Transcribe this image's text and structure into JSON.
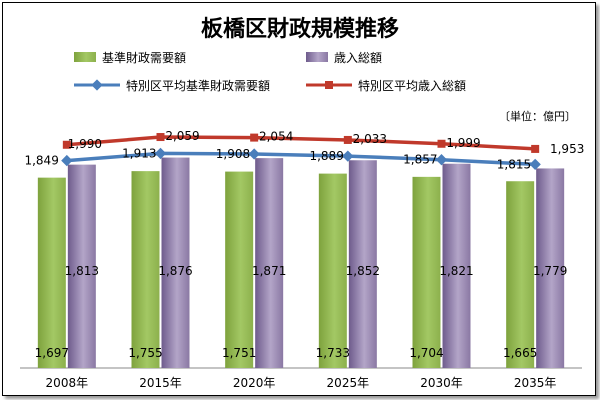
{
  "chart_data": {
    "type": "bar",
    "title": "板橋区財政規模推移",
    "unit_note": "〔単位：億円〕",
    "categories": [
      "2008年",
      "2015年",
      "2020年",
      "2025年",
      "2030年",
      "2035年"
    ],
    "series": [
      {
        "name": "基準財政需要額",
        "type": "bar",
        "color": "#92b84f",
        "values": [
          1697,
          1755,
          1751,
          1733,
          1704,
          1665
        ]
      },
      {
        "name": "歳入総額",
        "type": "bar",
        "color": "#8d7ca6",
        "values": [
          1813,
          1876,
          1871,
          1852,
          1821,
          1779
        ]
      },
      {
        "name": "特別区平均基準財政需要額",
        "type": "line",
        "color": "#4a7ebb",
        "values": [
          1849,
          1913,
          1908,
          1889,
          1857,
          1815
        ]
      },
      {
        "name": "特別区平均歳入総額",
        "type": "line",
        "color": "#c0392b",
        "values": [
          1990,
          2059,
          2054,
          2033,
          1999,
          1953
        ]
      }
    ],
    "value_labels": {
      "series0": [
        "1,697",
        "1,755",
        "1,751",
        "1,733",
        "1,704",
        "1,665"
      ],
      "series1": [
        "1,813",
        "1,876",
        "1,871",
        "1,852",
        "1,821",
        "1,779"
      ],
      "series2": [
        "1,849",
        "1,913",
        "1,908",
        "1,889",
        "1,857",
        "1,815"
      ],
      "series3": [
        "1,990",
        "2,059",
        "2,054",
        "2,033",
        "1,999",
        "1,953"
      ]
    },
    "legend_position": "top",
    "grid": false,
    "ylim": [
      0,
      2300
    ]
  }
}
